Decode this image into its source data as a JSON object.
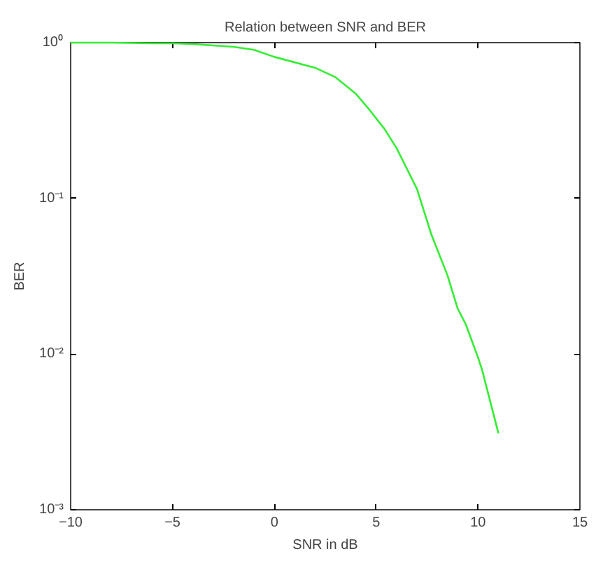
{
  "chart_data": {
    "type": "line",
    "title": "Relation between SNR and BER",
    "xlabel": "SNR in dB",
    "ylabel": "BER",
    "log": "y",
    "grid": false,
    "marker": "none",
    "line_style": "solid",
    "xlim": [
      -10,
      15
    ],
    "xticks": [
      -10,
      -5,
      0,
      5,
      10,
      15
    ],
    "ylim": [
      0.001,
      1
    ],
    "yticks": [
      {
        "value": 0.001,
        "label": "10⁻³"
      },
      {
        "value": 0.01,
        "label": "10⁻²"
      },
      {
        "value": 0.1,
        "label": "10⁻¹"
      },
      {
        "value": 1,
        "label": "10⁰"
      }
    ],
    "x": [
      -10,
      -8,
      -6,
      -5,
      -4,
      -2,
      -1,
      0,
      2,
      3,
      4,
      4.6,
      5.4,
      6,
      7,
      7.7,
      8.5,
      9,
      9.4,
      10,
      10.2,
      11
    ],
    "series": [
      {
        "color": "#33ee33",
        "values": [
          1.0,
          1.0,
          0.99,
          0.99,
          0.98,
          0.94,
          0.9,
          0.81,
          0.69,
          0.6,
          0.47,
          0.38,
          0.28,
          0.21,
          0.115,
          0.059,
          0.032,
          0.0196,
          0.0155,
          0.0095,
          0.0079,
          0.0031
        ]
      }
    ]
  }
}
